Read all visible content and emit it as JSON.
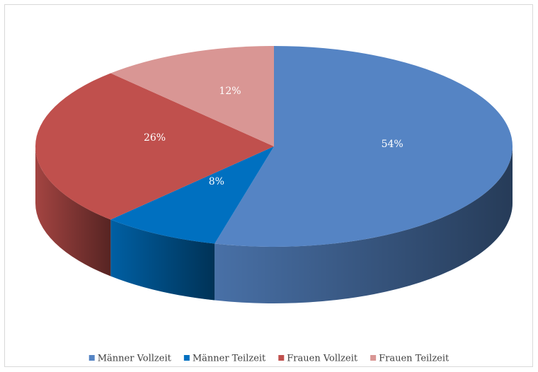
{
  "chart_data": {
    "type": "pie",
    "categories": [
      "Männer Vollzeit",
      "Männer Teilzeit",
      "Frauen Vollzeit",
      "Frauen Teilzeit"
    ],
    "values": [
      54,
      8,
      26,
      12
    ],
    "value_labels": [
      "54%",
      "8%",
      "26%",
      "12%"
    ],
    "colors": [
      "#5584c4",
      "#0070c0",
      "#c0504d",
      "#d99694"
    ],
    "legend": "bottom"
  }
}
